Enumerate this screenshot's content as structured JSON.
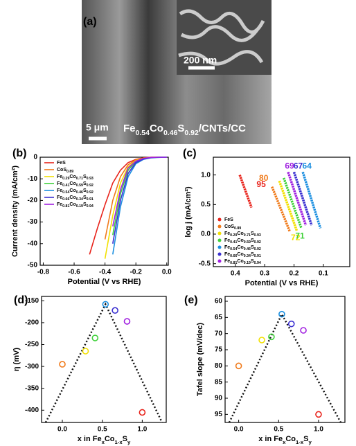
{
  "image": {
    "panel": "(a)",
    "scale_inset": "200 nm",
    "scale_main": "5 μm",
    "caption": [
      "Fe",
      "0.54",
      "Co",
      "0.46",
      "S",
      "0.92",
      "/CNTs/CC"
    ]
  },
  "chart_data": [
    {
      "type": "line",
      "panel": "(b)",
      "xlabel": "Potential (V vs RHE)",
      "ylabel": "Current density (mA/cm²)",
      "xlim": [
        -0.82,
        0.01
      ],
      "xticks": [
        -0.8,
        -0.6,
        -0.4,
        -0.2,
        {
          "value": 0,
          "label": "0.0"
        }
      ],
      "ylim": [
        -50,
        0
      ],
      "yticks": [
        -50,
        -40,
        -30,
        -20,
        -10,
        0
      ],
      "legend": "upper left",
      "x": [
        -0.5,
        -0.45,
        -0.4,
        -0.35,
        -0.3,
        -0.25,
        -0.2,
        -0.15,
        -0.1,
        -0.05,
        0
      ],
      "series": [
        {
          "name": "FeS",
          "color": "#e8231b",
          "values": [
            -45,
            -33,
            -22,
            -12,
            -6,
            -2.5,
            -1,
            -0.3,
            0,
            0,
            0
          ]
        },
        {
          "name": "CoS0.89",
          "color": "#f07a1a",
          "values": [
            null,
            null,
            -38,
            -20,
            -9,
            -3.5,
            -1.2,
            -0.4,
            -0.1,
            0,
            0
          ]
        },
        {
          "name": "Fe0.29Co0.71S0.93",
          "color": "#f2e000",
          "values": [
            null,
            null,
            -47,
            -27,
            -12,
            -4.5,
            -1.5,
            -0.5,
            -0.1,
            0,
            0
          ]
        },
        {
          "name": "Fe0.41Co0.59S0.92",
          "color": "#3fd13a",
          "values": [
            null,
            null,
            null,
            -36,
            -17,
            -6,
            -2,
            -0.6,
            -0.2,
            0,
            0
          ]
        },
        {
          "name": "Fe0.54Co0.46S0.92",
          "color": "#1b8fe0",
          "values": [
            null,
            null,
            null,
            -45,
            -23,
            -9,
            -3,
            -1,
            -0.3,
            -0.1,
            0
          ]
        },
        {
          "name": "Fe0.66Co0.34S0.91",
          "color": "#3a2fd0",
          "values": [
            null,
            null,
            null,
            -40,
            -20,
            -7.5,
            -2.5,
            -0.8,
            -0.2,
            0,
            0
          ]
        },
        {
          "name": "Fe0.81Co0.19S0.94",
          "color": "#a020e0",
          "values": [
            null,
            null,
            null,
            -32,
            -15,
            -5,
            -1.8,
            -0.5,
            -0.1,
            0,
            0
          ]
        }
      ]
    },
    {
      "type": "line",
      "panel": "(c)",
      "xlabel": "Potential (V vs RHE)",
      "ylabel": "log j (mA/cm²)",
      "xlim": [
        0.475,
        0.01
      ],
      "xticks": [
        0.4,
        0.3,
        0.2,
        0.1
      ],
      "ylim": [
        -0.55,
        1.3
      ],
      "yticks": [
        -0.5,
        {
          "value": 0,
          "label": "0.0"
        },
        0.5,
        {
          "value": 1,
          "label": "1.0"
        }
      ],
      "legend": "lower left",
      "series": [
        {
          "name": "FeS",
          "color": "#e8231b",
          "label": "95",
          "x": [
            0.385,
            0.345
          ],
          "values": [
            1.0,
            0.45
          ]
        },
        {
          "name": "CoS0.89",
          "color": "#f07a1a",
          "label": "80",
          "x": [
            0.275,
            0.215
          ],
          "values": [
            0.8,
            0.05
          ]
        },
        {
          "name": "Fe0.29Co0.71S0.93",
          "color": "#f2e000",
          "label": "72",
          "x": [
            0.25,
            0.19
          ],
          "values": [
            0.9,
            0.05
          ]
        },
        {
          "name": "Fe0.41Co0.59S0.92",
          "color": "#3fd13a",
          "label": "71",
          "x": [
            0.235,
            0.175
          ],
          "values": [
            0.95,
            0.1
          ]
        },
        {
          "name": "Fe0.54Co0.46S0.92",
          "color": "#1b8fe0",
          "label": "64",
          "x": [
            0.17,
            0.11
          ],
          "values": [
            1.05,
            0.1
          ]
        },
        {
          "name": "Fe0.66Co0.34S0.91",
          "color": "#3a2fd0",
          "label": "67",
          "x": [
            0.2,
            0.14
          ],
          "values": [
            1.05,
            0.15
          ]
        },
        {
          "name": "Fe0.81Co0.19S0.94",
          "color": "#a020e0",
          "label": "69",
          "x": [
            0.22,
            0.16
          ],
          "values": [
            1.05,
            0.15
          ]
        }
      ]
    },
    {
      "type": "scatter",
      "panel": "(d)",
      "xlabel": [
        "x in Fe",
        "x",
        "Co",
        "1-x",
        "S",
        "y"
      ],
      "ylabel": "η (mV)",
      "xlim": [
        -0.26,
        1.3
      ],
      "xticks": [
        {
          "value": 0,
          "label": "0.0"
        },
        0.5,
        {
          "value": 1,
          "label": "1.0"
        }
      ],
      "ylim": [
        -428,
        -140
      ],
      "yticks": [
        -150,
        -200,
        -250,
        -300,
        -350,
        -400
      ],
      "x": [
        0,
        0.29,
        0.41,
        0.54,
        0.66,
        0.81,
        1.0
      ],
      "values": [
        -295,
        -265,
        -235,
        -158,
        -172,
        -197,
        -405
      ],
      "colors": [
        "#f07a1a",
        "#f2e000",
        "#3fd13a",
        "#1b8fe0",
        "#3a2fd0",
        "#a020e0",
        "#e8231b"
      ]
    },
    {
      "type": "scatter",
      "panel": "(e)",
      "xlabel": [
        "x in Fe",
        "x",
        "Co",
        "1-x",
        "S",
        "y"
      ],
      "ylabel": "Tafel slope (mV/dec)",
      "xlim": [
        -0.17,
        1.33
      ],
      "xticks": [
        {
          "value": 0,
          "label": "0.0"
        },
        0.5,
        {
          "value": 1,
          "label": "1.0"
        }
      ],
      "ylim": [
        97.5,
        58.5
      ],
      "yticks": [
        60,
        65,
        70,
        75,
        80,
        85,
        90,
        95
      ],
      "x": [
        0,
        0.29,
        0.41,
        0.54,
        0.66,
        0.81,
        1.0
      ],
      "values": [
        80,
        72,
        71,
        64,
        67,
        69,
        95
      ],
      "colors": [
        "#f07a1a",
        "#f2e000",
        "#3fd13a",
        "#1b8fe0",
        "#3a2fd0",
        "#a020e0",
        "#e8231b"
      ]
    }
  ]
}
